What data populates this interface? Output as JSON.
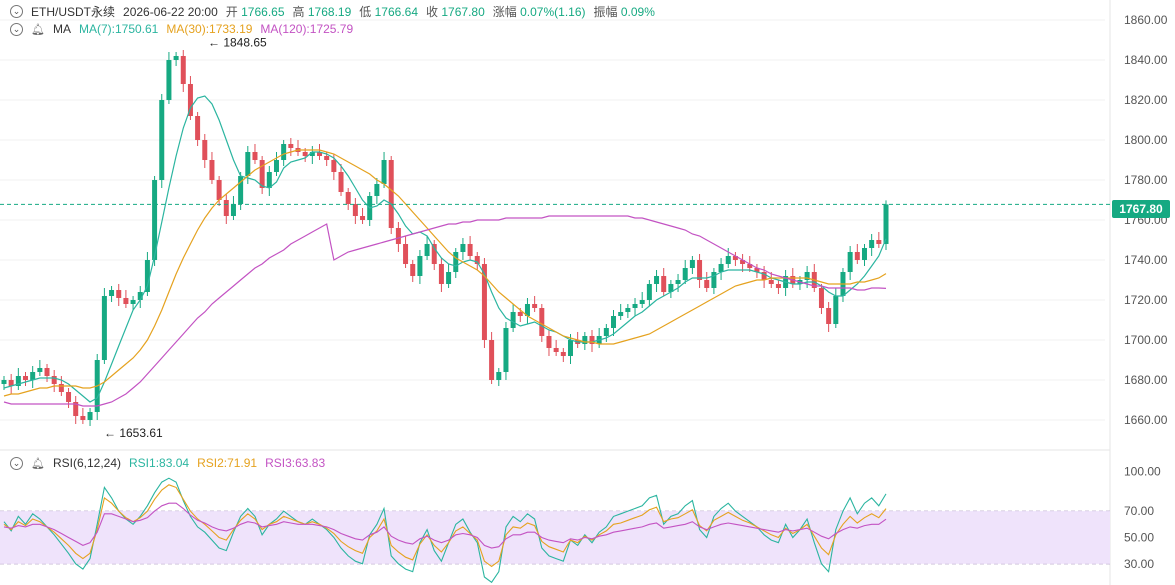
{
  "header": {
    "symbol": "ETH/USDT永续",
    "datetime": "2026-06-22 20:00",
    "open_label": "开",
    "open": "1766.65",
    "high_label": "高",
    "high": "1768.19",
    "low_label": "低",
    "low": "1766.64",
    "close_label": "收",
    "close": "1767.80",
    "change_label": "涨幅",
    "change": "0.07%(1.16)",
    "amp_label": "振幅",
    "amp": "0.09%"
  },
  "ma_legend": {
    "title": "MA",
    "ma7": "MA(7):1750.61",
    "ma30": "MA(30):1733.19",
    "ma120": "MA(120):1725.79"
  },
  "rsi_legend": {
    "title": "RSI(6,12,24)",
    "rsi1": "RSI1:83.04",
    "rsi2": "RSI2:71.91",
    "rsi3": "RSI3:63.83"
  },
  "last_price_tag": "1767.80",
  "colors": {
    "up": "#16a982",
    "down": "#e0505a",
    "ma7": "#2bb5a0",
    "ma30": "#e5a21f",
    "ma120": "#c353c3",
    "rsi_band": "#efe3fb"
  },
  "chart_data": [
    {
      "type": "candlestick",
      "ylim": [
        1650,
        1865
      ],
      "y_ticks": [
        "1860.00",
        "1840.00",
        "1820.00",
        "1800.00",
        "1780.00",
        "1760.00",
        "1740.00",
        "1720.00",
        "1700.00",
        "1680.00",
        "1660.00"
      ],
      "annotations": [
        {
          "label": "1848.65",
          "value": 1848.65
        },
        {
          "label": "1653.61",
          "value": 1653.61
        }
      ],
      "last_price": 1767.8,
      "close_series": [
        1680,
        1677,
        1682,
        1680,
        1684,
        1686,
        1682,
        1678,
        1674,
        1669,
        1662,
        1660,
        1664,
        1690,
        1722,
        1725,
        1721,
        1718,
        1720,
        1724,
        1740,
        1780,
        1820,
        1840,
        1842,
        1828,
        1812,
        1800,
        1790,
        1780,
        1770,
        1762,
        1768,
        1782,
        1794,
        1790,
        1776,
        1784,
        1790,
        1798,
        1796,
        1794,
        1792,
        1794,
        1792,
        1790,
        1784,
        1774,
        1768,
        1762,
        1760,
        1772,
        1778,
        1790,
        1756,
        1748,
        1738,
        1732,
        1742,
        1748,
        1738,
        1728,
        1734,
        1744,
        1748,
        1742,
        1738,
        1700,
        1680,
        1684,
        1706,
        1714,
        1712,
        1718,
        1716,
        1702,
        1696,
        1694,
        1692,
        1700,
        1698,
        1702,
        1698,
        1702,
        1706,
        1712,
        1714,
        1716,
        1718,
        1720,
        1728,
        1732,
        1724,
        1728,
        1730,
        1736,
        1740,
        1730,
        1726,
        1734,
        1738,
        1742,
        1740,
        1738,
        1736,
        1734,
        1730,
        1728,
        1726,
        1732,
        1728,
        1730,
        1734,
        1726,
        1716,
        1708,
        1722,
        1734,
        1744,
        1740,
        1746,
        1750,
        1748,
        1767.8
      ],
      "series": [
        {
          "name": "MA(7)",
          "values": [
            1676,
            1677,
            1678,
            1679,
            1680,
            1681,
            1681,
            1681,
            1680,
            1678,
            1675,
            1672,
            1669,
            1671,
            1679,
            1688,
            1697,
            1706,
            1715,
            1720,
            1727,
            1742,
            1759,
            1776,
            1792,
            1806,
            1816,
            1821,
            1822,
            1818,
            1810,
            1800,
            1790,
            1782,
            1781,
            1780,
            1777,
            1776,
            1779,
            1786,
            1789,
            1790,
            1791,
            1794,
            1794,
            1793,
            1791,
            1787,
            1782,
            1776,
            1770,
            1766,
            1767,
            1770,
            1768,
            1763,
            1757,
            1753,
            1754,
            1752,
            1746,
            1741,
            1738,
            1737,
            1739,
            1740,
            1739,
            1733,
            1724,
            1716,
            1711,
            1709,
            1707,
            1708,
            1709,
            1707,
            1705,
            1704,
            1702,
            1700,
            1699,
            1699,
            1699,
            1700,
            1701,
            1703,
            1706,
            1709,
            1712,
            1714,
            1717,
            1720,
            1722,
            1724,
            1726,
            1729,
            1731,
            1731,
            1731,
            1732,
            1734,
            1735,
            1735,
            1735,
            1735,
            1734,
            1733,
            1731,
            1730,
            1729,
            1728,
            1728,
            1729,
            1729,
            1727,
            1724,
            1722,
            1722,
            1725,
            1728,
            1732,
            1737,
            1742,
            1750.61
          ]
        },
        {
          "name": "MA(30)",
          "values": [
            1672,
            1673,
            1673,
            1674,
            1675,
            1676,
            1676,
            1677,
            1677,
            1677,
            1677,
            1676,
            1676,
            1677,
            1679,
            1682,
            1685,
            1688,
            1691,
            1695,
            1700,
            1707,
            1715,
            1724,
            1733,
            1741,
            1748,
            1755,
            1761,
            1766,
            1770,
            1773,
            1776,
            1779,
            1782,
            1785,
            1787,
            1789,
            1791,
            1793,
            1794,
            1795,
            1795,
            1795,
            1795,
            1794,
            1793,
            1791,
            1789,
            1787,
            1785,
            1783,
            1780,
            1778,
            1775,
            1772,
            1768,
            1764,
            1760,
            1756,
            1752,
            1748,
            1744,
            1741,
            1739,
            1737,
            1735,
            1732,
            1728,
            1724,
            1721,
            1718,
            1715,
            1712,
            1710,
            1708,
            1706,
            1704,
            1702,
            1701,
            1700,
            1699,
            1699,
            1698,
            1698,
            1698,
            1699,
            1700,
            1701,
            1702,
            1703,
            1705,
            1707,
            1709,
            1711,
            1713,
            1715,
            1717,
            1719,
            1721,
            1723,
            1725,
            1727,
            1728,
            1729,
            1730,
            1730,
            1731,
            1731,
            1731,
            1731,
            1731,
            1731,
            1730,
            1729,
            1728,
            1728,
            1728,
            1728,
            1729,
            1729,
            1730,
            1731,
            1733.19
          ]
        },
        {
          "name": "MA(120)",
          "values": [
            1669,
            1668,
            1668,
            1668,
            1668,
            1668,
            1668,
            1668,
            1668,
            1668,
            1668,
            1667,
            1667,
            1667,
            1668,
            1669,
            1671,
            1673,
            1676,
            1679,
            1683,
            1687,
            1691,
            1695,
            1699,
            1703,
            1707,
            1711,
            1714,
            1718,
            1721,
            1724,
            1727,
            1730,
            1733,
            1736,
            1738,
            1741,
            1743,
            1745,
            1748,
            1750,
            1752,
            1754,
            1756,
            1758,
            1740,
            1742,
            1744,
            1745,
            1746,
            1747,
            1748,
            1749,
            1750,
            1751,
            1752,
            1753,
            1754,
            1755,
            1756,
            1757,
            1758,
            1758,
            1759,
            1759,
            1760,
            1760,
            1760,
            1760,
            1761,
            1761,
            1761,
            1761,
            1761,
            1761,
            1762,
            1762,
            1762,
            1762,
            1762,
            1762,
            1762,
            1762,
            1762,
            1762,
            1762,
            1762,
            1761,
            1761,
            1760,
            1759,
            1758,
            1757,
            1756,
            1755,
            1753,
            1752,
            1750,
            1748,
            1746,
            1744,
            1742,
            1740,
            1738,
            1736,
            1735,
            1733,
            1732,
            1731,
            1730,
            1729,
            1728,
            1727,
            1727,
            1726,
            1726,
            1726,
            1726,
            1725,
            1725,
            1726,
            1726,
            1725.79
          ]
        }
      ]
    },
    {
      "type": "line",
      "ylim": [
        20,
        105
      ],
      "y_ticks": [
        "100.00",
        "70.00",
        "50.00",
        "30.00"
      ],
      "band": [
        30,
        70
      ],
      "series": [
        {
          "name": "RSI1",
          "values": [
            62,
            55,
            66,
            60,
            68,
            64,
            58,
            52,
            45,
            38,
            30,
            26,
            34,
            60,
            88,
            80,
            70,
            64,
            60,
            66,
            74,
            84,
            92,
            95,
            92,
            78,
            66,
            58,
            54,
            48,
            42,
            40,
            54,
            66,
            72,
            66,
            52,
            60,
            64,
            70,
            66,
            62,
            60,
            64,
            60,
            56,
            50,
            42,
            36,
            32,
            30,
            52,
            60,
            72,
            36,
            30,
            26,
            24,
            46,
            56,
            40,
            32,
            46,
            60,
            64,
            54,
            46,
            20,
            16,
            24,
            58,
            66,
            62,
            68,
            64,
            42,
            36,
            34,
            32,
            48,
            44,
            52,
            46,
            54,
            58,
            66,
            68,
            70,
            72,
            74,
            80,
            82,
            60,
            66,
            68,
            74,
            78,
            56,
            50,
            66,
            72,
            76,
            70,
            66,
            62,
            58,
            52,
            48,
            46,
            60,
            50,
            56,
            64,
            46,
            30,
            24,
            56,
            70,
            80,
            68,
            76,
            80,
            74,
            83.04
          ]
        },
        {
          "name": "RSI2",
          "values": [
            60,
            56,
            62,
            59,
            64,
            62,
            58,
            54,
            49,
            44,
            38,
            34,
            38,
            56,
            80,
            76,
            70,
            65,
            62,
            65,
            70,
            79,
            86,
            90,
            88,
            79,
            70,
            64,
            60,
            55,
            50,
            48,
            56,
            63,
            68,
            64,
            56,
            60,
            62,
            66,
            64,
            62,
            60,
            62,
            60,
            57,
            53,
            47,
            43,
            40,
            38,
            50,
            55,
            64,
            44,
            39,
            35,
            33,
            45,
            52,
            44,
            39,
            46,
            55,
            58,
            53,
            48,
            32,
            28,
            32,
            52,
            58,
            57,
            61,
            59,
            47,
            43,
            41,
            39,
            48,
            46,
            51,
            48,
            52,
            55,
            60,
            61,
            63,
            65,
            67,
            71,
            73,
            62,
            64,
            65,
            68,
            71,
            59,
            55,
            63,
            66,
            69,
            66,
            63,
            61,
            58,
            55,
            52,
            50,
            57,
            53,
            56,
            60,
            51,
            42,
            37,
            52,
            60,
            66,
            61,
            65,
            68,
            65,
            71.91
          ]
        },
        {
          "name": "RSI3",
          "values": [
            58,
            57,
            59,
            58,
            60,
            60,
            58,
            56,
            53,
            50,
            47,
            44,
            46,
            54,
            68,
            68,
            66,
            64,
            62,
            63,
            65,
            70,
            74,
            76,
            76,
            72,
            67,
            63,
            61,
            58,
            56,
            55,
            57,
            60,
            62,
            61,
            58,
            59,
            60,
            62,
            61,
            60,
            60,
            60,
            59,
            58,
            56,
            53,
            51,
            49,
            48,
            52,
            54,
            58,
            51,
            48,
            46,
            45,
            49,
            51,
            48,
            46,
            48,
            52,
            53,
            52,
            50,
            44,
            42,
            43,
            49,
            52,
            52,
            54,
            54,
            50,
            48,
            47,
            46,
            49,
            48,
            50,
            49,
            51,
            52,
            54,
            55,
            56,
            57,
            58,
            60,
            61,
            57,
            58,
            59,
            60,
            62,
            58,
            56,
            58,
            60,
            61,
            60,
            59,
            58,
            57,
            56,
            55,
            54,
            56,
            55,
            56,
            57,
            54,
            51,
            49,
            53,
            56,
            58,
            57,
            59,
            60,
            60,
            63.83
          ]
        }
      ]
    }
  ]
}
